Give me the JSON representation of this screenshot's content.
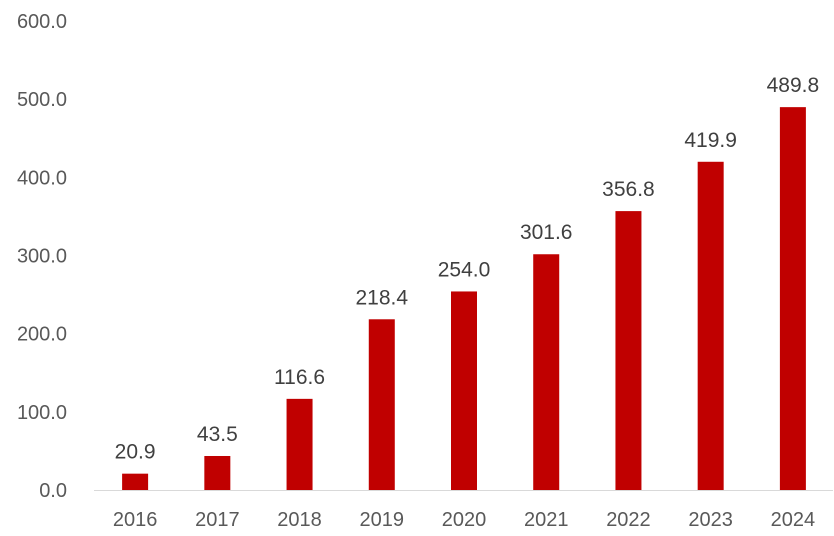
{
  "chart_data": {
    "type": "bar",
    "title": "",
    "xlabel": "",
    "ylabel": "",
    "categories": [
      "2016",
      "2017",
      "2018",
      "2019",
      "2020",
      "2021",
      "2022",
      "2023",
      "2024"
    ],
    "values": [
      20.9,
      43.5,
      116.6,
      218.4,
      254.0,
      301.6,
      356.8,
      419.9,
      489.8
    ],
    "data_labels": [
      "20.9",
      "43.5",
      "116.6",
      "218.4",
      "254.0",
      "301.6",
      "356.8",
      "419.9",
      "489.8"
    ],
    "ylim": [
      0,
      600
    ],
    "yticks": [
      "0.0",
      "100.0",
      "200.0",
      "300.0",
      "400.0",
      "500.0",
      "600.0"
    ],
    "grid": false,
    "legend": "none",
    "bar_color": "#C00000",
    "axis_color": "#D9D9D9"
  }
}
